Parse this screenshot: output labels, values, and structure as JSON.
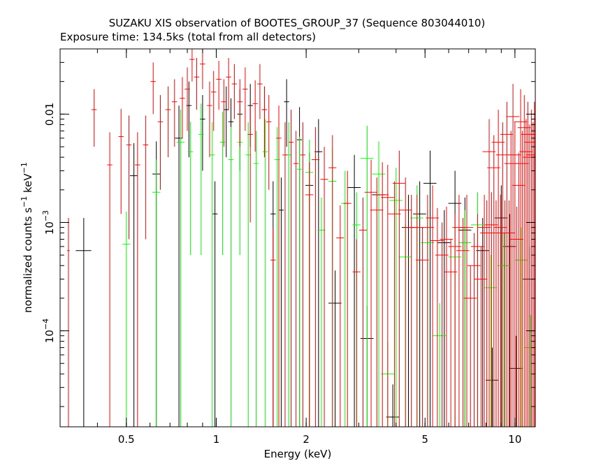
{
  "chart_data": {
    "type": "scatter",
    "title": "SUZAKU XIS observation of BOOTES_GROUP_37 (Sequence 803044010)",
    "subtitle": "Exposure time: 134.5ks (total from all detectors)",
    "xlabel": "Energy (keV)",
    "ylabel": {
      "base": "normalized counts s",
      "exp1": "−1",
      "mid": " keV",
      "exp2": "−1"
    },
    "xscale": "log",
    "yscale": "log",
    "xlim": [
      0.3,
      11.7
    ],
    "ylim": [
      1.3e-05,
      0.04
    ],
    "x_ticks": [
      {
        "value": 0.5,
        "label": "0.5"
      },
      {
        "value": 1,
        "label": "1"
      },
      {
        "value": 2,
        "label": "2"
      },
      {
        "value": 5,
        "label": "5"
      },
      {
        "value": 10,
        "label": "10"
      }
    ],
    "y_ticks": [
      {
        "value": 0.0001,
        "mant": "10",
        "exp": "−4"
      },
      {
        "value": 0.001,
        "mant": "10",
        "exp": "−3"
      },
      {
        "value": 0.01,
        "mant": "0.01",
        "exp": ""
      }
    ],
    "series": [
      {
        "color": "#000000",
        "points": [
          [
            0.36,
            0.00055,
            0.06,
            0.00055
          ],
          [
            0.53,
            0.0027,
            0.03,
            0.0027
          ],
          [
            0.63,
            0.0028,
            0.03,
            0.0028
          ],
          [
            0.75,
            0.006,
            0.03,
            0.006
          ],
          [
            0.81,
            0.012,
            0.02,
            0.008
          ],
          [
            0.9,
            0.009,
            0.02,
            0.006
          ],
          [
            0.99,
            0.0012,
            0.02,
            0.0012
          ],
          [
            1.08,
            0.011,
            0.02,
            0.007
          ],
          [
            1.12,
            0.0085,
            0.02,
            0.0055
          ],
          [
            1.2,
            0.01,
            0.02,
            0.007
          ],
          [
            1.3,
            0.012,
            0.02,
            0.007
          ],
          [
            1.45,
            0.011,
            0.02,
            0.007
          ],
          [
            1.55,
            0.0012,
            0.02,
            0.0012
          ],
          [
            1.65,
            0.0013,
            0.02,
            0.0013
          ],
          [
            1.72,
            0.013,
            0.02,
            0.008
          ],
          [
            1.9,
            0.0058,
            0.02,
            0.0058
          ],
          [
            2.05,
            0.0022,
            0.03,
            0.0022
          ],
          [
            2.2,
            0.0045,
            0.03,
            0.0045
          ],
          [
            2.5,
            0.00018,
            0.05,
            0.00018
          ],
          [
            2.9,
            0.0021,
            0.05,
            0.0021
          ],
          [
            3.2,
            8.5e-05,
            0.05,
            8.5e-05
          ],
          [
            3.5,
            0.0018,
            0.05,
            0.0018
          ],
          [
            3.9,
            1.6e-05,
            0.05,
            1.6e-05
          ],
          [
            4.4,
            0.0009,
            0.05,
            0.0009
          ],
          [
            4.8,
            0.0012,
            0.05,
            0.0012
          ],
          [
            5.2,
            0.0023,
            0.05,
            0.0023
          ],
          [
            5.8,
            0.00065,
            0.05,
            0.00065
          ],
          [
            6.3,
            0.0015,
            0.05,
            0.0015
          ],
          [
            6.8,
            0.00085,
            0.05,
            0.00085
          ],
          [
            7.8,
            0.00055,
            0.05,
            0.00055
          ],
          [
            8.4,
            3.5e-05,
            0.05,
            3.5e-05
          ],
          [
            9.0,
            0.0011,
            0.05,
            0.0011
          ],
          [
            9.6,
            0.0006,
            0.05,
            0.0006
          ],
          [
            10.1,
            4.5e-05,
            0.05,
            4.5e-05
          ],
          [
            11.2,
            0.0003,
            0.05,
            0.0003
          ]
        ]
      },
      {
        "color": "#00ff00",
        "points": [
          [
            0.5,
            0.00063,
            0.03,
            0.00063
          ],
          [
            0.63,
            0.0019,
            0.03,
            0.0019
          ],
          [
            0.76,
            0.0055,
            0.03,
            0.0055
          ],
          [
            0.82,
            0.0045,
            0.02,
            0.004
          ],
          [
            0.89,
            0.0065,
            0.02,
            0.006
          ],
          [
            0.97,
            0.0042,
            0.02,
            0.0042
          ],
          [
            1.05,
            0.0055,
            0.02,
            0.005
          ],
          [
            1.12,
            0.0038,
            0.02,
            0.0038
          ],
          [
            1.2,
            0.0055,
            0.02,
            0.005
          ],
          [
            1.28,
            0.0042,
            0.02,
            0.0042
          ],
          [
            1.36,
            0.0035,
            0.02,
            0.0035
          ],
          [
            1.46,
            0.0045,
            0.02,
            0.0045
          ],
          [
            1.6,
            0.0038,
            0.02,
            0.0038
          ],
          [
            1.75,
            0.0042,
            0.02,
            0.0042
          ],
          [
            1.9,
            0.0031,
            0.02,
            0.0031
          ],
          [
            2.05,
            0.0029,
            0.03,
            0.0029
          ],
          [
            2.25,
            0.00085,
            0.03,
            0.00085
          ],
          [
            2.45,
            0.0024,
            0.03,
            0.0024
          ],
          [
            2.7,
            0.0015,
            0.03,
            0.0015
          ],
          [
            2.95,
            0.00095,
            0.03,
            0.00095
          ],
          [
            3.2,
            0.0039,
            0.05,
            0.0039
          ],
          [
            3.5,
            0.0028,
            0.05,
            0.0028
          ],
          [
            3.75,
            4e-05,
            0.05,
            4e-05
          ],
          [
            4.0,
            0.0016,
            0.05,
            0.0016
          ],
          [
            4.3,
            0.00048,
            0.05,
            0.00048
          ],
          [
            4.7,
            0.0011,
            0.05,
            0.0011
          ],
          [
            5.1,
            0.00065,
            0.05,
            0.00065
          ],
          [
            5.6,
            9e-05,
            0.05,
            9e-05
          ],
          [
            6.3,
            0.00048,
            0.05,
            0.00048
          ],
          [
            6.8,
            0.00065,
            0.05,
            0.00065
          ],
          [
            7.5,
            0.00095,
            0.05,
            0.00095
          ],
          [
            8.3,
            0.00025,
            0.05,
            0.00025
          ],
          [
            9.2,
            0.0004,
            0.05,
            0.0004
          ],
          [
            10.5,
            0.00045,
            0.05,
            0.00045
          ],
          [
            11.3,
            7e-05,
            0.05,
            7e-05
          ]
        ]
      },
      {
        "color": "#ff0000",
        "points": [
          [
            0.32,
            0.00055,
            0.01,
            0.00055
          ],
          [
            0.39,
            0.011,
            0.02,
            0.006
          ],
          [
            0.44,
            0.0034,
            0.02,
            0.0034
          ],
          [
            0.48,
            0.0062,
            0.02,
            0.005
          ],
          [
            0.51,
            0.0052,
            0.02,
            0.0045
          ],
          [
            0.545,
            0.0034,
            0.02,
            0.0034
          ],
          [
            0.58,
            0.0052,
            0.02,
            0.0045
          ],
          [
            0.615,
            0.02,
            0.02,
            0.01
          ],
          [
            0.65,
            0.0085,
            0.02,
            0.0065
          ],
          [
            0.69,
            0.011,
            0.02,
            0.007
          ],
          [
            0.725,
            0.013,
            0.02,
            0.008
          ],
          [
            0.77,
            0.014,
            0.02,
            0.008
          ],
          [
            0.8,
            0.017,
            0.02,
            0.01
          ],
          [
            0.83,
            0.032,
            0.02,
            0.012
          ],
          [
            0.86,
            0.022,
            0.02,
            0.011
          ],
          [
            0.9,
            0.029,
            0.02,
            0.012
          ],
          [
            0.95,
            0.012,
            0.02,
            0.008
          ],
          [
            0.98,
            0.016,
            0.02,
            0.009
          ],
          [
            1.02,
            0.021,
            0.02,
            0.01
          ],
          [
            1.06,
            0.013,
            0.02,
            0.008
          ],
          [
            1.1,
            0.022,
            0.02,
            0.011
          ],
          [
            1.15,
            0.019,
            0.02,
            0.01
          ],
          [
            1.2,
            0.013,
            0.02,
            0.008
          ],
          [
            1.25,
            0.017,
            0.02,
            0.01
          ],
          [
            1.3,
            0.0065,
            0.02,
            0.0055
          ],
          [
            1.35,
            0.0125,
            0.02,
            0.008
          ],
          [
            1.4,
            0.019,
            0.02,
            0.01
          ],
          [
            1.45,
            0.011,
            0.02,
            0.007
          ],
          [
            1.5,
            0.0085,
            0.02,
            0.0065
          ],
          [
            1.55,
            0.00045,
            0.02,
            0.00045
          ],
          [
            1.62,
            0.006,
            0.02,
            0.006
          ],
          [
            1.7,
            0.0042,
            0.02,
            0.0042
          ],
          [
            1.78,
            0.0055,
            0.02,
            0.0055
          ],
          [
            1.85,
            0.0035,
            0.02,
            0.0035
          ],
          [
            1.95,
            0.0042,
            0.02,
            0.0042
          ],
          [
            2.05,
            0.0018,
            0.03,
            0.0018
          ],
          [
            2.15,
            0.0038,
            0.03,
            0.0038
          ],
          [
            2.3,
            0.0025,
            0.03,
            0.0025
          ],
          [
            2.45,
            0.0032,
            0.03,
            0.0032
          ],
          [
            2.6,
            0.00072,
            0.03,
            0.00072
          ],
          [
            2.75,
            0.0015,
            0.03,
            0.0015
          ],
          [
            2.95,
            0.00035,
            0.03,
            0.00035
          ],
          [
            3.1,
            0.00085,
            0.03,
            0.00085
          ],
          [
            3.3,
            0.0019,
            0.05,
            0.0019
          ],
          [
            3.45,
            0.0013,
            0.05,
            0.0013
          ],
          [
            3.6,
            0.0018,
            0.05,
            0.0018
          ],
          [
            3.75,
            0.0017,
            0.05,
            0.0017
          ],
          [
            3.95,
            0.0012,
            0.05,
            0.0012
          ],
          [
            4.1,
            0.0023,
            0.05,
            0.0023
          ],
          [
            4.3,
            0.0013,
            0.05,
            0.0013
          ],
          [
            4.5,
            0.0009,
            0.05,
            0.0009
          ],
          [
            4.7,
            0.0009,
            0.05,
            0.0009
          ],
          [
            4.9,
            0.00045,
            0.05,
            0.00045
          ],
          [
            5.1,
            0.0009,
            0.05,
            0.0009
          ],
          [
            5.3,
            0.0011,
            0.05,
            0.0011
          ],
          [
            5.5,
            0.00068,
            0.05,
            0.00068
          ],
          [
            5.7,
            0.0005,
            0.05,
            0.0005
          ],
          [
            5.9,
            0.0007,
            0.05,
            0.0007
          ],
          [
            6.1,
            0.00035,
            0.05,
            0.00035
          ],
          [
            6.3,
            0.0006,
            0.05,
            0.0006
          ],
          [
            6.5,
            0.0009,
            0.05,
            0.0009
          ],
          [
            6.7,
            0.00055,
            0.05,
            0.00055
          ],
          [
            6.9,
            0.0009,
            0.05,
            0.0009
          ],
          [
            7.1,
            0.0002,
            0.05,
            0.0002
          ],
          [
            7.3,
            0.0004,
            0.05,
            0.0004
          ],
          [
            7.5,
            0.0006,
            0.05,
            0.0006
          ],
          [
            7.7,
            0.0003,
            0.05,
            0.0003
          ],
          [
            7.9,
            0.0009,
            0.05,
            0.0009
          ],
          [
            8.05,
            0.0008,
            0.05,
            0.0008
          ],
          [
            8.2,
            0.0045,
            0.05,
            0.0045
          ],
          [
            8.35,
            0.00095,
            0.05,
            0.00095
          ],
          [
            8.5,
            0.0032,
            0.05,
            0.0032
          ],
          [
            8.65,
            0.0008,
            0.05,
            0.0008
          ],
          [
            8.8,
            0.0055,
            0.05,
            0.0055
          ],
          [
            8.95,
            0.0009,
            0.05,
            0.0009
          ],
          [
            9.1,
            0.0042,
            0.05,
            0.0042
          ],
          [
            9.25,
            0.0008,
            0.05,
            0.0008
          ],
          [
            9.4,
            0.0065,
            0.05,
            0.0065
          ],
          [
            9.55,
            0.0008,
            0.05,
            0.0008
          ],
          [
            9.7,
            0.0035,
            0.05,
            0.0035
          ],
          [
            9.85,
            0.0095,
            0.05,
            0.0095
          ],
          [
            10.0,
            0.0042,
            0.05,
            0.0042
          ],
          [
            10.15,
            0.0007,
            0.05,
            0.0007
          ],
          [
            10.3,
            0.0022,
            0.05,
            0.0022
          ],
          [
            10.45,
            0.0085,
            0.05,
            0.0085
          ],
          [
            10.6,
            0.0035,
            0.05,
            0.0035
          ],
          [
            10.75,
            0.0075,
            0.05,
            0.0075
          ],
          [
            10.9,
            0.0045,
            0.05,
            0.0045
          ],
          [
            11.05,
            0.0065,
            0.05,
            0.0065
          ],
          [
            11.2,
            0.004,
            0.05,
            0.004
          ],
          [
            11.35,
            0.0055,
            0.05,
            0.0055
          ],
          [
            11.5,
            0.0042,
            0.05,
            0.0042
          ],
          [
            11.62,
            0.0065,
            0.04,
            0.0065
          ]
        ]
      }
    ]
  }
}
